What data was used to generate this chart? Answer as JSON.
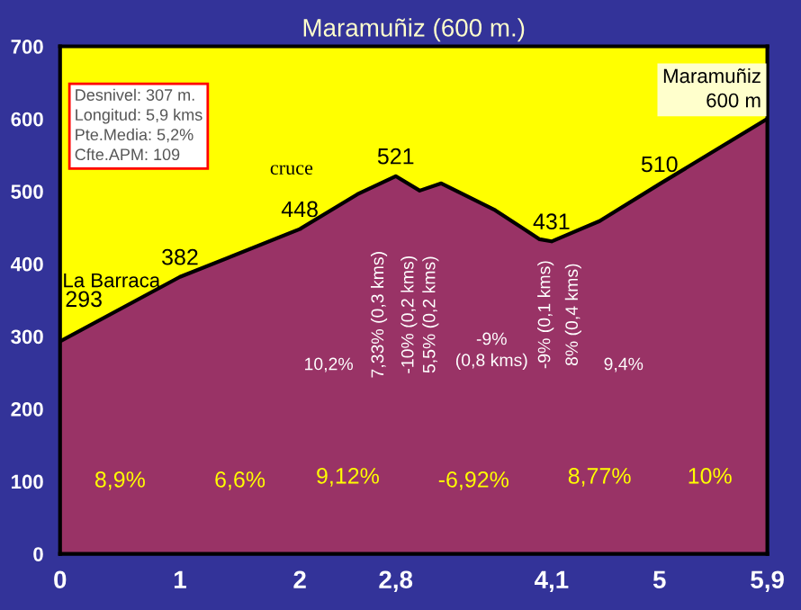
{
  "chart_data": {
    "type": "area",
    "title": "Maramuñiz (600 m.)",
    "x": [
      0,
      1,
      2,
      2.48,
      2.8,
      3.0,
      3.18,
      3.63,
      4.0,
      4.1,
      4.5,
      5,
      5.9
    ],
    "series": [
      {
        "color": "#993366",
        "values": [
          293,
          382,
          448,
          496,
          521,
          501,
          511,
          474,
          434,
          431,
          459,
          510,
          600
        ]
      }
    ],
    "xlim": [
      0,
      5.9
    ],
    "ylim": [
      0,
      700
    ],
    "xticks": [
      0,
      1,
      2,
      {
        "value": 2.8,
        "label": "2,8"
      },
      {
        "value": 4.1,
        "label": "4,1"
      },
      5,
      {
        "value": 5.9,
        "label": "5,9"
      }
    ],
    "yticks": [
      0,
      100,
      200,
      300,
      400,
      500,
      600,
      700
    ],
    "bands": [
      {
        "axis": "y",
        "from": 293,
        "to": 700,
        "color": "#ffff00"
      }
    ],
    "grid": false,
    "legend": false,
    "annotations": [
      {
        "text": "293",
        "x": 0,
        "y": 293
      },
      {
        "text": "382",
        "x": 1,
        "y": 382
      },
      {
        "text": "448",
        "x": 2,
        "y": 448
      },
      {
        "text": "521",
        "x": 2.8,
        "y": 521
      },
      {
        "text": "431",
        "x": 4.1,
        "y": 431
      },
      {
        "text": "510",
        "x": 5,
        "y": 510
      },
      "La Barraca",
      "cruce",
      "Maramuñiz\n600 m",
      "Desnivel: 307 m.\nLongitud: 5,9 kms\nPte.Media: 5,2%\nCfte.APM: 109",
      "8,9%",
      "6,6%",
      "9,12%",
      "-6,92%",
      "8,77%",
      "10%",
      "10,2%",
      "7,33% (0,3 kms)",
      "-10% (0,2 kms)",
      "5,5% (0,2 kms)",
      "-9%\n(0,8 kms)",
      "-9% (0,1 kms)",
      "8% (0,4 kms)",
      "9,4%"
    ]
  }
}
